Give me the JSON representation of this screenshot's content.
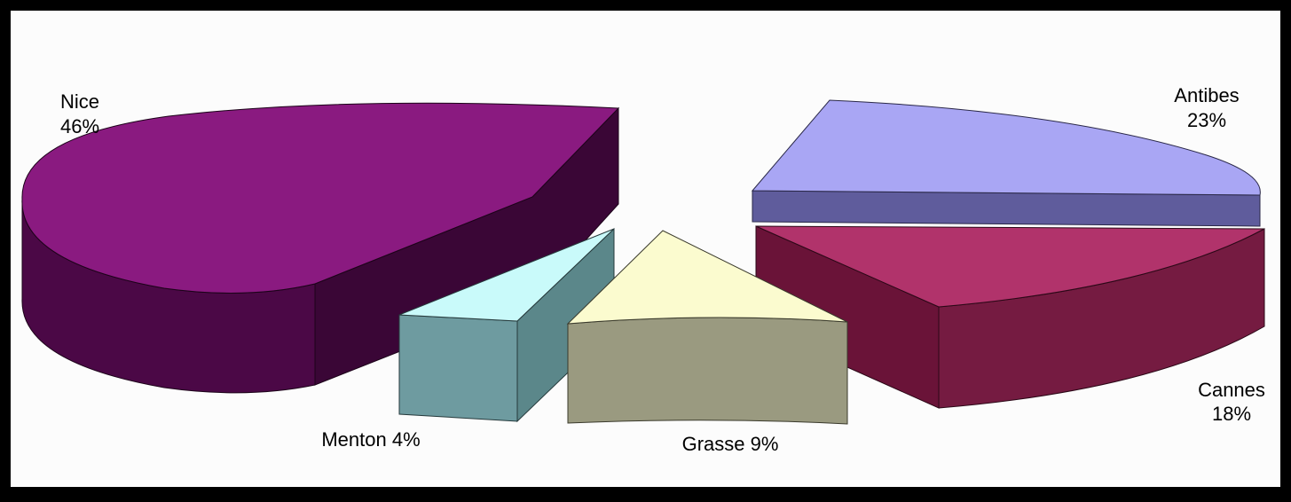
{
  "chart_data": {
    "type": "pie",
    "title": "",
    "slices": [
      {
        "label": "Nice",
        "value": 46,
        "value_label": "46%",
        "color": "#8a1a80"
      },
      {
        "label": "Antibes",
        "value": 23,
        "value_label": "23%",
        "color": "#a9a6f4"
      },
      {
        "label": "Cannes",
        "value": 18,
        "value_label": "18%",
        "color": "#b1336b"
      },
      {
        "label": "Grasse",
        "value": 9,
        "value_label": "9%",
        "color": "#fbfbcf"
      },
      {
        "label": "Menton",
        "value": 4,
        "value_label": "4%",
        "color": "#c9fafa"
      }
    ],
    "exploded": true,
    "style": "3d",
    "legend": "none",
    "background": "#fcfcfc"
  }
}
